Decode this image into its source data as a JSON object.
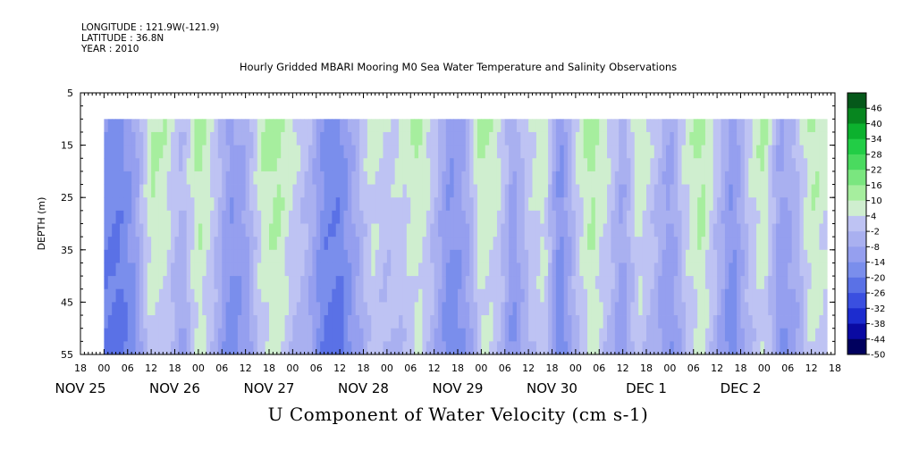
{
  "header": {
    "longitude": "LONGITUDE : 121.9W(-121.9)",
    "latitude": "LATITUDE : 36.8N",
    "year": "YEAR : 2010"
  },
  "title": "Hourly Gridded MBARI Mooring M0 Sea Water Temperature and Salinity Observations",
  "bottom_title": "U Component of Water Velocity (cm s-1)",
  "chart_data": {
    "type": "heatmap",
    "title": "Hourly Gridded MBARI Mooring M0 Sea Water Temperature and Salinity Observations",
    "variable": "U Component of Water Velocity (cm s-1)",
    "xlabel": "",
    "ylabel": "DEPTH (m)",
    "xlim_hours": [
      -6,
      186
    ],
    "ylim": [
      5,
      55
    ],
    "y_inverted": true,
    "data_depth_range": [
      10,
      55
    ],
    "data_time_range_hours": [
      0,
      184
    ],
    "yticks": [
      5,
      15,
      25,
      35,
      45,
      55
    ],
    "xtick_hour_labels": [
      "18",
      "00",
      "06",
      "12",
      "18",
      "00",
      "06",
      "12",
      "18",
      "00",
      "06",
      "12",
      "18",
      "00",
      "06",
      "12",
      "18",
      "00",
      "06",
      "12",
      "18",
      "00",
      "06",
      "12",
      "18",
      "00",
      "06",
      "12",
      "18",
      "00",
      "06",
      "12",
      "18"
    ],
    "date_labels": [
      {
        "label": "NOV 25",
        "hour": -6
      },
      {
        "label": "NOV 26",
        "hour": 18
      },
      {
        "label": "NOV 27",
        "hour": 42
      },
      {
        "label": "NOV 28",
        "hour": 66
      },
      {
        "label": "NOV 29",
        "hour": 90
      },
      {
        "label": "NOV 30",
        "hour": 114
      },
      {
        "label": "DEC  1",
        "hour": 138
      },
      {
        "label": "DEC  2",
        "hour": 162
      }
    ],
    "colorbar": {
      "levels": [
        -50,
        -44,
        -38,
        -32,
        -26,
        -20,
        -14,
        -8,
        -2,
        4,
        10,
        16,
        22,
        28,
        34,
        40,
        46
      ],
      "labels": [
        "46",
        "40",
        "34",
        "28",
        "22",
        "16",
        "10",
        "4",
        "-2",
        "-8",
        "-14",
        "-20",
        "-26",
        "-32",
        "-38",
        "-44",
        "-50"
      ],
      "colors": [
        "#00005e",
        "#0a0aa2",
        "#1c2ccf",
        "#3a4fe0",
        "#5a71e6",
        "#7a8eec",
        "#959fef",
        "#a9b0f0",
        "#bec3f3",
        "#cfeecf",
        "#a6ee9e",
        "#7ae67f",
        "#4ada5f",
        "#22cd46",
        "#0cb12e",
        "#07861f",
        "#05581a"
      ]
    },
    "u_profile_by_hour_cm_s": [
      {
        "hour": 0,
        "u": -14
      },
      {
        "hour": 4,
        "u": -16
      },
      {
        "hour": 8,
        "u": -8
      },
      {
        "hour": 12,
        "u": 12
      },
      {
        "hour": 16,
        "u": 8
      },
      {
        "hour": 20,
        "u": -2
      },
      {
        "hour": 24,
        "u": 14
      },
      {
        "hour": 28,
        "u": 4
      },
      {
        "hour": 32,
        "u": -10
      },
      {
        "hour": 36,
        "u": -6
      },
      {
        "hour": 40,
        "u": 10
      },
      {
        "hour": 44,
        "u": 14
      },
      {
        "hour": 48,
        "u": 6
      },
      {
        "hour": 52,
        "u": 0
      },
      {
        "hour": 56,
        "u": -14
      },
      {
        "hour": 60,
        "u": -16
      },
      {
        "hour": 64,
        "u": -4
      },
      {
        "hour": 68,
        "u": 8
      },
      {
        "hour": 72,
        "u": 4
      },
      {
        "hour": 76,
        "u": 6
      },
      {
        "hour": 80,
        "u": 12
      },
      {
        "hour": 84,
        "u": 2
      },
      {
        "hour": 88,
        "u": -12
      },
      {
        "hour": 92,
        "u": -6
      },
      {
        "hour": 96,
        "u": 12
      },
      {
        "hour": 100,
        "u": 8
      },
      {
        "hour": 104,
        "u": -8
      },
      {
        "hour": 108,
        "u": 4
      },
      {
        "hour": 112,
        "u": 10
      },
      {
        "hour": 116,
        "u": -14
      },
      {
        "hour": 120,
        "u": 4
      },
      {
        "hour": 124,
        "u": 14
      },
      {
        "hour": 128,
        "u": 6
      },
      {
        "hour": 132,
        "u": -6
      },
      {
        "hour": 136,
        "u": 10
      },
      {
        "hour": 140,
        "u": 2
      },
      {
        "hour": 144,
        "u": -8
      },
      {
        "hour": 148,
        "u": 6
      },
      {
        "hour": 152,
        "u": 14
      },
      {
        "hour": 156,
        "u": 2
      },
      {
        "hour": 160,
        "u": -12
      },
      {
        "hour": 164,
        "u": 4
      },
      {
        "hour": 168,
        "u": 12
      },
      {
        "hour": 172,
        "u": -8
      },
      {
        "hour": 176,
        "u": -2
      },
      {
        "hour": 180,
        "u": 12
      },
      {
        "hour": 184,
        "u": 8
      }
    ]
  }
}
